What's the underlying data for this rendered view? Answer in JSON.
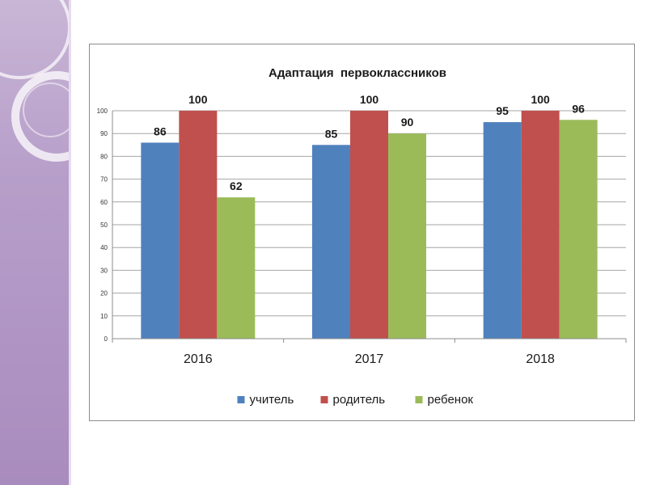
{
  "chart_data": {
    "type": "bar",
    "title": "Адаптация  первоклассников",
    "categories": [
      "2016",
      "2017",
      "2018"
    ],
    "series": [
      {
        "name": "учитель",
        "values": [
          86,
          85,
          95
        ],
        "color": "#4f81bd"
      },
      {
        "name": "родитель",
        "values": [
          100,
          100,
          100
        ],
        "color": "#c0504d"
      },
      {
        "name": "ребенок",
        "values": [
          62,
          90,
          96
        ],
        "color": "#9bbb59"
      }
    ],
    "ylim": [
      0,
      100
    ],
    "yticks": [
      0,
      10,
      20,
      30,
      40,
      50,
      60,
      70,
      80,
      90,
      100
    ],
    "grid": true,
    "legend_position": "bottom",
    "xlabel": "",
    "ylabel": ""
  }
}
